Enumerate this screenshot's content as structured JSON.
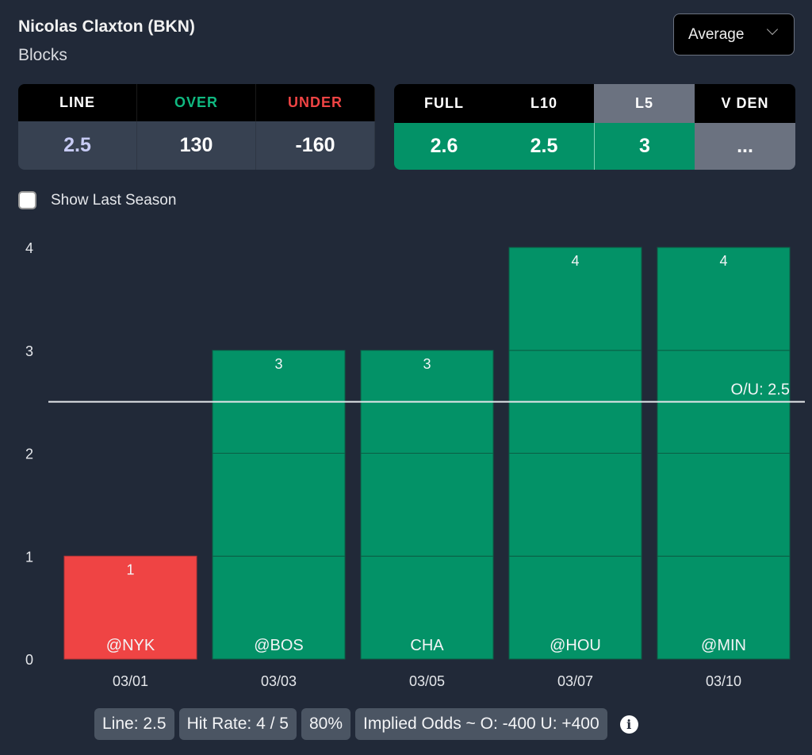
{
  "header": {
    "player": "Nicolas Claxton (BKN)",
    "stat": "Blocks",
    "select_value": "Average"
  },
  "odds_table": {
    "headers": [
      {
        "label": "LINE",
        "color": "#ffffff"
      },
      {
        "label": "OVER",
        "color": "#10b981"
      },
      {
        "label": "UNDER",
        "color": "#ef4444"
      }
    ],
    "values": [
      {
        "value": "2.5",
        "color": "#c7cbf5"
      },
      {
        "value": "130",
        "color": "#ffffff"
      },
      {
        "value": "-160",
        "color": "#ffffff"
      }
    ]
  },
  "avg_table": {
    "headers": [
      "FULL",
      "L10",
      "L5",
      "V DEN"
    ],
    "values": [
      "2.6",
      "2.5",
      "3",
      "..."
    ],
    "selected": "L5"
  },
  "toggle": {
    "label": "Show Last Season",
    "checked": false
  },
  "colors": {
    "over": "#039267",
    "under": "#ef4444",
    "background": "#212938"
  },
  "chart_data": {
    "type": "bar",
    "categories": [
      "03/01",
      "03/03",
      "03/05",
      "03/07",
      "03/10"
    ],
    "opponents": [
      "@NYK",
      "@BOS",
      "CHA",
      "@HOU",
      "@MIN"
    ],
    "values": [
      1,
      3,
      3,
      4,
      4
    ],
    "yticks": [
      0,
      1,
      2,
      3,
      4
    ],
    "ylim": [
      0,
      4
    ],
    "line": 2.5,
    "line_label": "O/U: 2.5",
    "title": "",
    "xlabel": "",
    "ylabel": "",
    "grid": false
  },
  "summary": {
    "line": "Line: 2.5",
    "hit_rate": "Hit Rate: 4 / 5",
    "percent": "80%",
    "implied_odds": "Implied Odds ~ O: -400 U: +400"
  }
}
